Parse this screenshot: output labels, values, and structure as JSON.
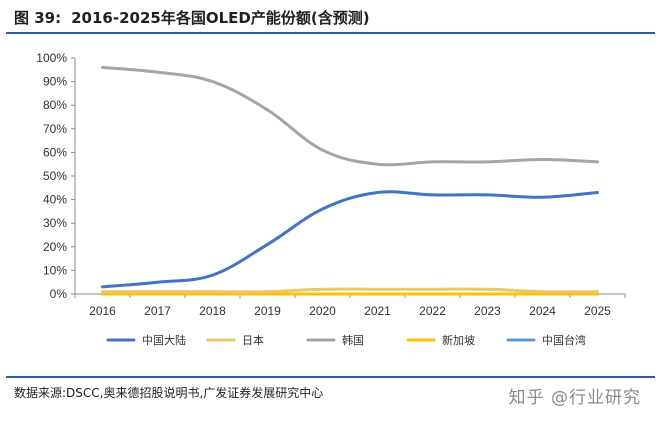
{
  "header": {
    "figure_label": "图 39:",
    "figure_title": "2016-2025年各国OLED产能份额(含预测)"
  },
  "footer": {
    "source": "数据来源:DSCC,奥来德招股说明书,广发证券发展研究中心",
    "watermark": "知乎 @行业研究"
  },
  "colors": {
    "accent": "#2b5aa8"
  },
  "chart_data": {
    "type": "line",
    "title": "",
    "xlabel": "",
    "ylabel": "",
    "x": [
      "2016",
      "2017",
      "2018",
      "2019",
      "2020",
      "2021",
      "2022",
      "2023",
      "2024",
      "2025"
    ],
    "ylim": [
      0,
      100
    ],
    "yticks": [
      0,
      10,
      20,
      30,
      40,
      50,
      60,
      70,
      80,
      90,
      100
    ],
    "ytick_labels": [
      "0%",
      "10%",
      "20%",
      "30%",
      "40%",
      "50%",
      "60%",
      "70%",
      "80%",
      "90%",
      "100%"
    ],
    "grid": false,
    "legend_position": "bottom",
    "series": [
      {
        "name": "中国大陆",
        "color": "#4472c4",
        "values": [
          3,
          5,
          8,
          21,
          36,
          43,
          42,
          42,
          41,
          43
        ]
      },
      {
        "name": "日本",
        "color": "#e8c96a",
        "values": [
          1,
          1,
          1,
          1,
          2,
          2,
          2,
          2,
          1,
          1
        ]
      },
      {
        "name": "韩国",
        "color": "#a5a5a5",
        "values": [
          96,
          94,
          90,
          78,
          61,
          55,
          56,
          56,
          57,
          56
        ]
      },
      {
        "name": "新加坡",
        "color": "#ffc000",
        "values": [
          0,
          0,
          0,
          0,
          0,
          0,
          0,
          0,
          0,
          0
        ]
      },
      {
        "name": "中国台湾",
        "color": "#5b9bd5",
        "values": [
          0,
          0,
          0,
          0,
          0,
          0,
          0,
          0,
          0,
          0
        ]
      }
    ]
  }
}
